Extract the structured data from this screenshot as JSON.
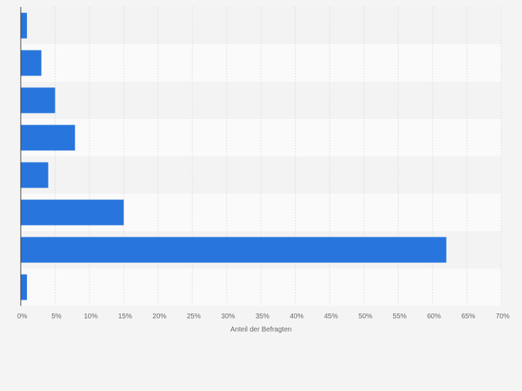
{
  "chart_data": {
    "type": "bar",
    "orientation": "horizontal",
    "title": "",
    "xlabel": "Anteil der Befragten",
    "ylabel": "",
    "categories": [
      "",
      "",
      "",
      "",
      "",
      "",
      "",
      ""
    ],
    "values": [
      0.9,
      3.0,
      5.0,
      7.9,
      4.0,
      15.0,
      62.0,
      0.9
    ],
    "xlim": [
      0,
      70
    ],
    "xticks": [
      0,
      5,
      10,
      15,
      20,
      25,
      30,
      35,
      40,
      45,
      50,
      55,
      60,
      65,
      70
    ],
    "xtick_labels": [
      "0%",
      "5%",
      "10%",
      "15%",
      "20%",
      "25%",
      "30%",
      "35%",
      "40%",
      "45%",
      "50%",
      "55%",
      "60%",
      "65%",
      "70%"
    ],
    "grid": true,
    "legend": "none",
    "colors": {
      "bar": "#2876dd",
      "band_light": "#fafafa",
      "band_dark": "#f3f3f3",
      "grid": "#dcdcdc",
      "axis": "#333333",
      "tick_text": "#666666"
    }
  }
}
